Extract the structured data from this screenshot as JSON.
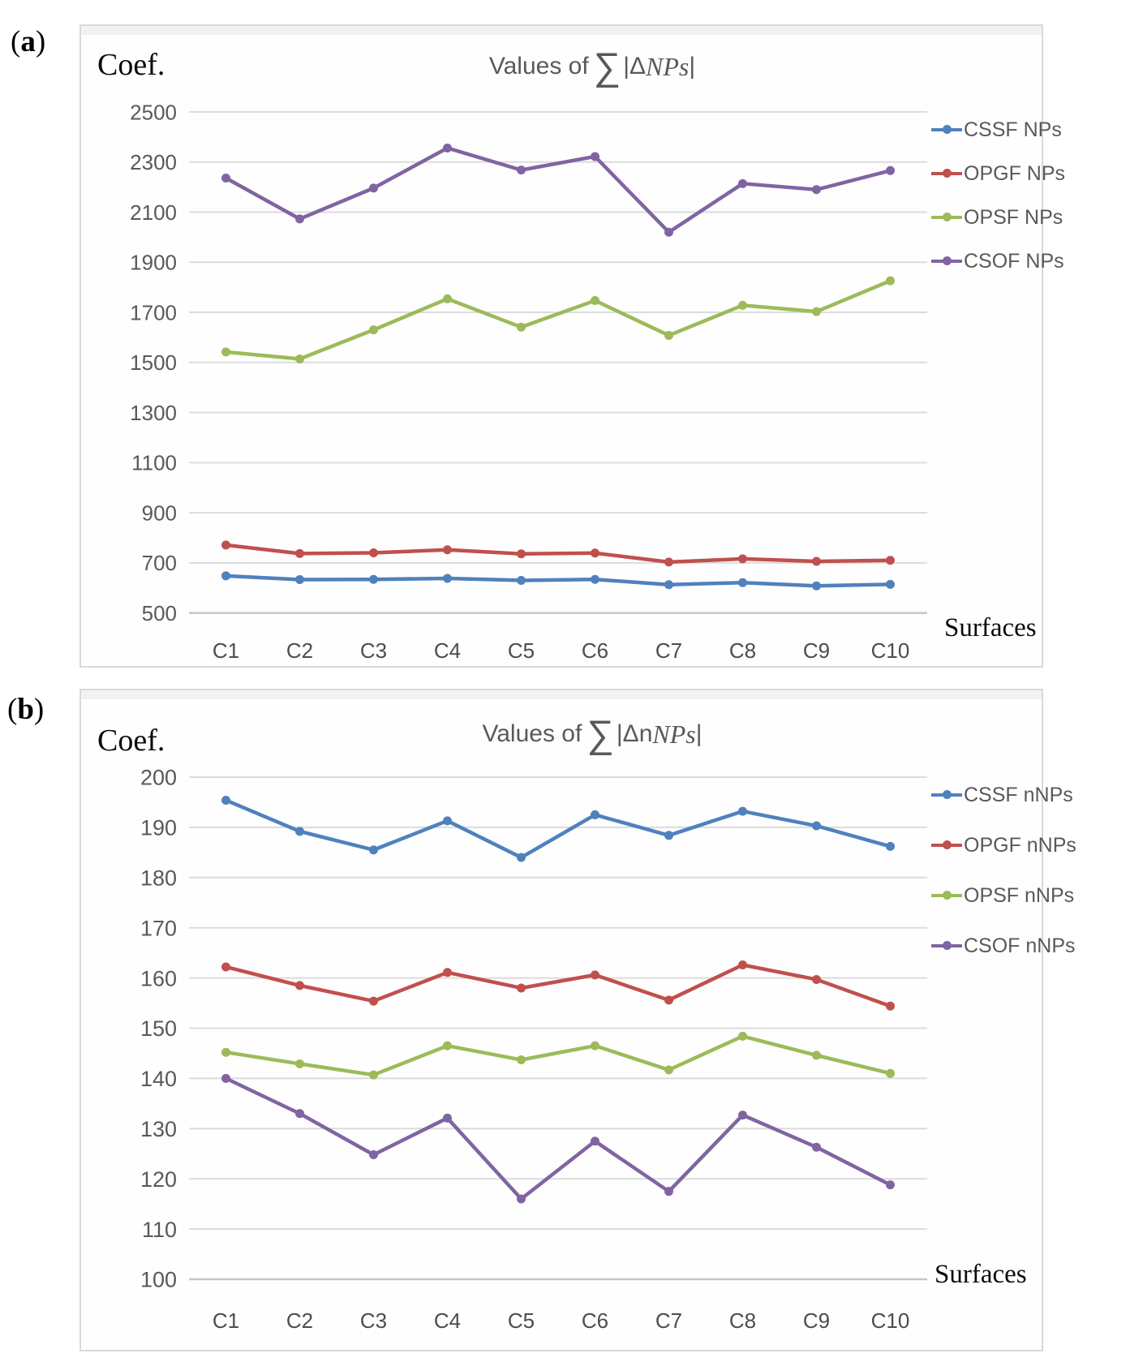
{
  "colors": {
    "grid": "#dcdcdc",
    "grid_bottom": "#c6c6c6",
    "tick_text": "#595959",
    "annotation_text": "#0a0a0a",
    "series_blue": "#4F81BD",
    "series_red": "#C0504D",
    "series_green": "#9BBB59",
    "series_purple": "#8064A2"
  },
  "corner_labels": [
    {
      "open": "(",
      "letter": "a",
      "close": ")"
    },
    {
      "open": "(",
      "letter": "b",
      "close": ")"
    }
  ],
  "chart_data": [
    {
      "type": "line",
      "panel_tag": "(a)",
      "title": "Values of ∑|ΔNPs|",
      "title_parts": {
        "prefix": "Values of",
        "sigma": "∑",
        "bar_delta": "|Δ",
        "upright": "",
        "italic": "NPs",
        "close": "|"
      },
      "ylabel": "Coef.",
      "xlabel": "Surfaces",
      "categories": [
        "C1",
        "C2",
        "C3",
        "C4",
        "C5",
        "C6",
        "C7",
        "C8",
        "C9",
        "C10"
      ],
      "ylim": [
        500,
        2500
      ],
      "yticks": [
        2500,
        2300,
        2100,
        1900,
        1700,
        1500,
        1300,
        1100,
        900,
        700,
        500
      ],
      "grid": true,
      "legend_position": "right",
      "series": [
        {
          "name": "CSSF NPs",
          "color": "#4F81BD",
          "values": [
            648,
            633,
            634,
            638,
            630,
            634,
            613,
            621,
            608,
            614
          ]
        },
        {
          "name": "OPGF NPs",
          "color": "#C0504D",
          "values": [
            771,
            737,
            740,
            752,
            736,
            739,
            703,
            716,
            706,
            710
          ]
        },
        {
          "name": "OPSF NPs",
          "color": "#9BBB59",
          "values": [
            1542,
            1514,
            1630,
            1754,
            1641,
            1747,
            1608,
            1728,
            1703,
            1826
          ]
        },
        {
          "name": "CSOF NPs",
          "color": "#8064A2",
          "values": [
            2236,
            2073,
            2196,
            2356,
            2268,
            2322,
            2020,
            2214,
            2190,
            2266
          ]
        }
      ]
    },
    {
      "type": "line",
      "panel_tag": "(b)",
      "title": "Values of ∑|ΔnNPs|",
      "title_parts": {
        "prefix": "Values of",
        "sigma": "∑",
        "bar_delta": "|Δ",
        "upright": "n",
        "italic": "NPs",
        "close": "|"
      },
      "ylabel": "Coef.",
      "xlabel": "Surfaces",
      "categories": [
        "C1",
        "C2",
        "C3",
        "C4",
        "C5",
        "C6",
        "C7",
        "C8",
        "C9",
        "C10"
      ],
      "ylim": [
        100,
        200
      ],
      "yticks": [
        200,
        190,
        180,
        170,
        160,
        150,
        140,
        130,
        120,
        110,
        100
      ],
      "grid": true,
      "legend_position": "right",
      "series": [
        {
          "name": "CSSF nNPs",
          "color": "#4F81BD",
          "values": [
            195.4,
            189.2,
            185.5,
            191.3,
            184.0,
            192.5,
            188.4,
            193.2,
            190.3,
            186.2
          ]
        },
        {
          "name": "OPGF nNPs",
          "color": "#C0504D",
          "values": [
            162.2,
            158.5,
            155.4,
            161.1,
            158.0,
            160.6,
            155.6,
            162.6,
            159.7,
            154.4
          ]
        },
        {
          "name": "OPSF nNPs",
          "color": "#9BBB59",
          "values": [
            145.2,
            142.9,
            140.7,
            146.5,
            143.7,
            146.5,
            141.7,
            148.4,
            144.6,
            141.0
          ]
        },
        {
          "name": "CSOF nNPs",
          "color": "#8064A2",
          "values": [
            140.0,
            133.0,
            124.8,
            132.1,
            116.0,
            127.5,
            117.5,
            132.7,
            126.3,
            118.8
          ]
        }
      ]
    }
  ]
}
